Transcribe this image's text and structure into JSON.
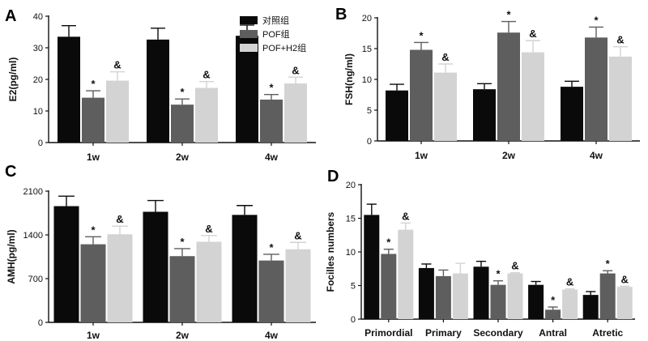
{
  "colors": {
    "control": "#0a0a0a",
    "pof": "#5e5e5e",
    "pof_h2": "#d3d3d3",
    "axis": "#111111"
  },
  "legend": [
    "对照组",
    "POF组",
    "POF+H2组"
  ],
  "chart_data": [
    {
      "panel_label": "A",
      "type": "bar",
      "ylabel": "E2(pg/ml)",
      "ylim": [
        0,
        40
      ],
      "yticks": [
        "0",
        "10",
        "20",
        "30",
        "40"
      ],
      "yticks_values": [
        0,
        10,
        20,
        30,
        40
      ],
      "categories": [
        "1w",
        "2w",
        "4w"
      ],
      "series": [
        {
          "name": "对照组",
          "values": [
            33.5,
            32.6,
            33.8
          ],
          "errors": [
            3.5,
            3.6,
            3.4
          ],
          "marks": [
            "",
            "",
            ""
          ]
        },
        {
          "name": "POF组",
          "values": [
            14.2,
            12.0,
            13.6
          ],
          "errors": [
            2.2,
            1.8,
            1.6
          ],
          "marks": [
            "*",
            "*",
            "*"
          ]
        },
        {
          "name": "POF+H2组",
          "values": [
            19.6,
            17.3,
            18.7
          ],
          "errors": [
            2.8,
            2.0,
            2.0
          ],
          "marks": [
            "&",
            "&",
            "&"
          ]
        }
      ]
    },
    {
      "panel_label": "B",
      "type": "bar",
      "ylabel": "FSH(ng/ml)",
      "ylim": [
        0,
        20
      ],
      "yticks": [
        "0",
        "5",
        "10",
        "15",
        "20"
      ],
      "yticks_values": [
        0,
        5,
        10,
        15,
        20
      ],
      "categories": [
        "1w",
        "2w",
        "4w"
      ],
      "series": [
        {
          "name": "对照组",
          "values": [
            8.2,
            8.4,
            8.8
          ],
          "errors": [
            1.0,
            0.9,
            0.9
          ],
          "marks": [
            "",
            "",
            ""
          ]
        },
        {
          "name": "POF组",
          "values": [
            14.8,
            17.6,
            16.8
          ],
          "errors": [
            1.2,
            1.8,
            1.7
          ],
          "marks": [
            "*",
            "*",
            "*"
          ]
        },
        {
          "name": "POF+H2组",
          "values": [
            11.1,
            14.4,
            13.7
          ],
          "errors": [
            1.4,
            1.9,
            1.6
          ],
          "marks": [
            "&",
            "&",
            "&"
          ]
        }
      ]
    },
    {
      "panel_label": "C",
      "type": "bar",
      "ylabel": "AMH(pg/ml)",
      "ylim": [
        0,
        2100
      ],
      "yticks": [
        "0",
        "700",
        "1400",
        "2100"
      ],
      "yticks_values": [
        0,
        700,
        1400,
        2100
      ],
      "categories": [
        "1w",
        "2w",
        "4w"
      ],
      "series": [
        {
          "name": "对照组",
          "values": [
            1860,
            1770,
            1720
          ],
          "errors": [
            160,
            180,
            150
          ],
          "marks": [
            "",
            "",
            ""
          ]
        },
        {
          "name": "POF组",
          "values": [
            1250,
            1060,
            990
          ],
          "errors": [
            120,
            120,
            100
          ],
          "marks": [
            "*",
            "*",
            "*"
          ]
        },
        {
          "name": "POF+H2组",
          "values": [
            1410,
            1290,
            1170
          ],
          "errors": [
            130,
            100,
            110
          ],
          "marks": [
            "&",
            "&",
            "&"
          ]
        }
      ]
    },
    {
      "panel_label": "D",
      "type": "bar",
      "ylabel": "Focilles numbers",
      "ylim": [
        0,
        20
      ],
      "yticks": [
        "0",
        "5",
        "10",
        "15",
        "20"
      ],
      "yticks_values": [
        0,
        5,
        10,
        15,
        20
      ],
      "categories": [
        "Primordial",
        "Primary",
        "Secondary",
        "Antral",
        "Atretic"
      ],
      "series": [
        {
          "name": "对照组",
          "values": [
            15.5,
            7.6,
            7.8,
            5.1,
            3.6
          ],
          "errors": [
            1.6,
            0.6,
            0.8,
            0.5,
            0.5
          ],
          "marks": [
            "",
            "",
            "",
            "",
            ""
          ]
        },
        {
          "name": "POF组",
          "values": [
            9.7,
            6.4,
            5.1,
            1.4,
            6.8
          ],
          "errors": [
            0.7,
            0.9,
            0.6,
            0.4,
            0.4
          ],
          "marks": [
            "*",
            "",
            "*",
            "*",
            "*"
          ]
        },
        {
          "name": "POF+H2组",
          "values": [
            13.3,
            6.8,
            6.8,
            4.4,
            4.8
          ],
          "errors": [
            1.0,
            1.5,
            0.1,
            0.1,
            0.1
          ],
          "marks": [
            "&",
            "",
            "&",
            "&",
            "&"
          ]
        }
      ]
    }
  ]
}
